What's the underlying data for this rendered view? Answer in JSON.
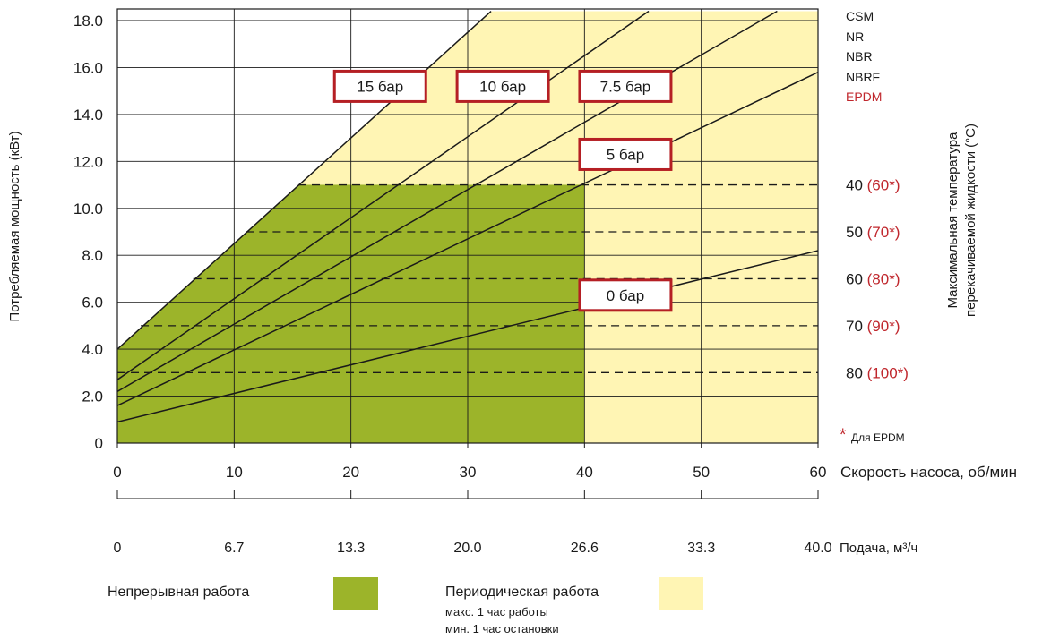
{
  "chart_data": {
    "type": "line",
    "ylabel": "Потребляемая мощность (кВт)",
    "ylim": [
      0,
      18
    ],
    "yticks": [
      "0",
      "2.0",
      "4.0",
      "6.0",
      "8.0",
      "10.0",
      "12.0",
      "14.0",
      "16.0",
      "18.0"
    ],
    "xlim": [
      0,
      60
    ],
    "x_axis_speed": {
      "label": "Скорость насоса, об/мин",
      "ticks": [
        "0",
        "10",
        "20",
        "30",
        "40",
        "50",
        "60"
      ]
    },
    "x_axis_flow": {
      "label": "Подача, м³/ч",
      "ticks": [
        "0",
        "6.7",
        "13.3",
        "20.0",
        "26.6",
        "33.3",
        "40.0"
      ]
    },
    "series": [
      {
        "name": "0 бар",
        "x": [
          0,
          60
        ],
        "y": [
          0.9,
          8.2
        ]
      },
      {
        "name": "5 бар",
        "x": [
          0,
          60
        ],
        "y": [
          1.6,
          15.8
        ]
      },
      {
        "name": "7.5 бар",
        "x": [
          0,
          56.5
        ],
        "y": [
          2.2,
          18.4
        ]
      },
      {
        "name": "10 бар",
        "x": [
          0,
          45.5
        ],
        "y": [
          2.7,
          18.4
        ]
      },
      {
        "name": "15 бар",
        "x": [
          0,
          32
        ],
        "y": [
          4.0,
          18.4
        ]
      }
    ],
    "regions": {
      "continuous": {
        "label": "Непрерывная работа",
        "color": "#9cb42a",
        "polygon": [
          [
            0,
            0
          ],
          [
            0,
            4.0
          ],
          [
            15.5,
            11.0
          ],
          [
            40,
            11.0
          ],
          [
            40,
            0
          ]
        ]
      },
      "periodic": {
        "label": "Периодическая работа",
        "color": "#fff5b4",
        "note_lines": [
          "макс. 1 час работы",
          "мин. 1 час остановки"
        ],
        "polygon": [
          [
            0,
            0
          ],
          [
            0,
            4.0
          ],
          [
            32,
            18.4
          ],
          [
            60,
            18.4
          ],
          [
            60,
            0
          ]
        ]
      }
    },
    "temperature_lines": [
      {
        "y": 11.0,
        "x_start": 15.5,
        "value": "40",
        "epdm": "(60*)"
      },
      {
        "y": 9.0,
        "x_start": 11,
        "value": "50",
        "epdm": "(70*)"
      },
      {
        "y": 7.0,
        "x_start": 6.5,
        "value": "60",
        "epdm": "(80*)"
      },
      {
        "y": 5.0,
        "x_start": 2,
        "value": "70",
        "epdm": "(90*)"
      },
      {
        "y": 3.0,
        "x_start": 0,
        "value": "80",
        "epdm": "(100*)"
      }
    ],
    "right_axis_label_lines": [
      "Максимальная температура",
      "перекачиваемой жидкости (°C)"
    ],
    "materials": [
      "CSM",
      "NR",
      "NBR",
      "NBRF"
    ],
    "material_epdm": "EPDM",
    "footnote_star": "*",
    "footnote_text": "Для EPDM"
  },
  "colors": {
    "continuous": "#9cb42a",
    "periodic": "#fff5b4",
    "label_border": "#b51f24",
    "accent_red": "#c0272d"
  }
}
